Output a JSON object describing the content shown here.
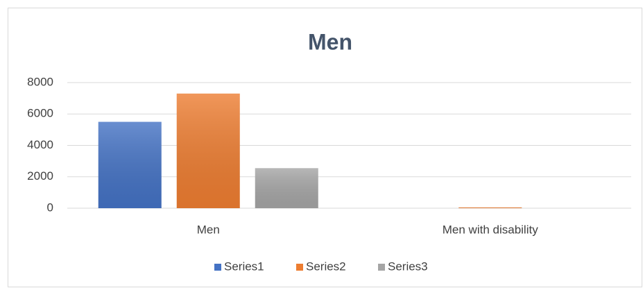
{
  "chart_data": {
    "type": "bar",
    "title": "Men",
    "categories": [
      "Men",
      "Men with disability"
    ],
    "series": [
      {
        "name": "Series1",
        "color": "#4472c4",
        "values": [
          5500,
          0
        ]
      },
      {
        "name": "Series2",
        "color": "#ed7d31",
        "values": [
          7300,
          50
        ]
      },
      {
        "name": "Series3",
        "color": "#a5a5a5",
        "values": [
          2550,
          0
        ]
      }
    ],
    "ylim": [
      0,
      8000
    ],
    "yticks": [
      0,
      2000,
      4000,
      6000,
      8000
    ],
    "grid": true,
    "legend": "bottom"
  }
}
